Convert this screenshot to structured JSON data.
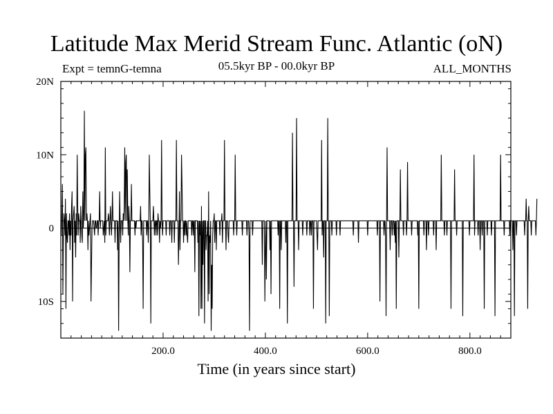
{
  "chart_data": {
    "type": "line",
    "title": "Latitude Max Merid Stream Func. Atlantic (oN)",
    "experiment": "Expt = temnG-temna",
    "period": "05.5kyr BP - 00.0kyr BP",
    "season": "ALL_MONTHS",
    "xlabel": "Time (in years since start)",
    "ylabel": "",
    "xlim": [
      0,
      880
    ],
    "ylim": [
      -15,
      20
    ],
    "x_ticks": [
      {
        "value": 200,
        "label": "200.0"
      },
      {
        "value": 400,
        "label": "400.0"
      },
      {
        "value": 600,
        "label": "600.0"
      },
      {
        "value": 800,
        "label": "800.0"
      }
    ],
    "y_ticks": [
      {
        "value": 20,
        "label": "20N"
      },
      {
        "value": 10,
        "label": "10N"
      },
      {
        "value": 0,
        "label": "0"
      },
      {
        "value": -10,
        "label": "10S"
      }
    ],
    "series": [
      {
        "name": "temnG-temna",
        "x_start": 1,
        "x_step": 1,
        "values": [
          -1,
          2,
          6,
          -9,
          -1,
          2,
          1,
          -1,
          4,
          -11,
          2,
          -1,
          -2,
          1,
          1,
          -1,
          2,
          -3,
          1,
          -1,
          3,
          5,
          -10,
          1,
          2,
          3,
          -2,
          1,
          -4,
          2,
          -1,
          10,
          3,
          -1,
          2,
          1,
          1,
          -2,
          3,
          1,
          -1,
          -2,
          5,
          0,
          2,
          16,
          1,
          10,
          11,
          1,
          2,
          1,
          -3,
          1,
          -1,
          0,
          1,
          2,
          -10,
          -5,
          0,
          1,
          1,
          1,
          0,
          -1,
          1,
          1,
          0,
          0,
          1,
          1,
          -1,
          1,
          1,
          5,
          0,
          1,
          1,
          1,
          1,
          1,
          -1,
          0,
          1,
          -2,
          11,
          -1,
          1,
          1,
          1,
          1,
          2,
          1,
          -1,
          1,
          3,
          1,
          -1,
          1,
          5,
          1,
          1,
          1,
          1,
          -2,
          1,
          1,
          1,
          1,
          -3,
          1,
          -14,
          -2,
          5,
          1,
          -2,
          1,
          1,
          1,
          -1,
          2,
          1,
          3,
          11,
          1,
          9,
          10,
          1,
          8,
          1,
          -1,
          3,
          1,
          -6,
          1,
          1,
          6,
          1,
          1,
          1,
          1,
          1,
          1,
          -1,
          1,
          0,
          1,
          1,
          1,
          1,
          1,
          1,
          1,
          1,
          3,
          -1,
          1,
          1,
          -2,
          -11,
          1,
          1,
          1,
          1,
          1,
          1,
          -1,
          1,
          1,
          -2,
          1,
          10,
          5,
          1,
          -13,
          1,
          1,
          1,
          1,
          3,
          1,
          -1,
          1,
          1,
          -1,
          1,
          1,
          -1,
          2,
          1,
          1,
          -2,
          1,
          0,
          1,
          12,
          1,
          -1,
          1,
          1,
          1,
          1,
          1,
          1,
          -1,
          1,
          1,
          1,
          1,
          1,
          1,
          -1,
          1,
          1,
          1,
          -2,
          1,
          1,
          1,
          1,
          -2,
          1,
          1,
          1,
          12,
          1,
          1,
          1,
          -5,
          -1,
          5,
          -3,
          1,
          1,
          10,
          6,
          1,
          1,
          -2,
          1,
          -1,
          1,
          1,
          -1,
          1,
          -1,
          -2,
          1,
          1,
          1,
          1,
          1,
          1,
          1,
          -1,
          1,
          1,
          -1,
          1,
          1,
          -6,
          1,
          1,
          1,
          1,
          1,
          -2,
          1,
          -12,
          1,
          -1,
          1,
          -11,
          3,
          -11,
          1,
          -5,
          1,
          1,
          -13,
          1,
          1,
          -3,
          -1,
          -1,
          1,
          -10,
          5,
          -9,
          -1,
          -2,
          1,
          -14,
          -5,
          -11,
          -1,
          1,
          1,
          2,
          -2,
          1,
          1,
          -3,
          1,
          1,
          1,
          1,
          1,
          1,
          -1,
          1,
          1,
          1,
          2,
          -2,
          1,
          1,
          1,
          12,
          1,
          1,
          -3,
          1,
          1,
          1,
          -1,
          -2,
          1,
          1,
          1,
          1,
          1,
          1,
          1,
          1,
          1,
          -1,
          1,
          1,
          10,
          1,
          1,
          -1,
          1,
          1,
          1,
          1,
          1,
          1,
          1,
          1,
          1,
          1,
          -1,
          1,
          1,
          1,
          1,
          1,
          1,
          1,
          1,
          -1,
          1,
          1,
          1,
          -1,
          -14,
          1,
          1,
          1,
          1,
          1,
          -1,
          1,
          1,
          1,
          1,
          1,
          1,
          1,
          1,
          1,
          1,
          1,
          1,
          1,
          1,
          1,
          1,
          1,
          1,
          -5,
          1,
          1,
          1,
          1,
          -10,
          -3,
          1,
          -7,
          1,
          1,
          1,
          1,
          1,
          1,
          -3,
          1,
          -9,
          1,
          1,
          1,
          1,
          1,
          1,
          1,
          1,
          1,
          1,
          1,
          1,
          1,
          -1,
          1,
          1,
          -11,
          1,
          1,
          -3,
          1,
          1,
          1,
          1,
          1,
          1,
          1,
          1,
          -2,
          1,
          1,
          -13,
          1,
          1,
          1,
          1,
          1,
          1,
          1,
          1,
          1,
          13,
          1,
          1,
          -8,
          1,
          1,
          1,
          1,
          15,
          1,
          1,
          1,
          -3,
          1,
          1,
          1,
          1,
          1,
          1,
          1,
          -1,
          1,
          1,
          1,
          1,
          1,
          1,
          1,
          -1,
          1,
          1,
          1,
          1,
          1,
          -1,
          1,
          1,
          -1,
          1,
          1,
          1,
          -11,
          1,
          1,
          1,
          1,
          1,
          1,
          -1,
          -3,
          1,
          1,
          1,
          1,
          1,
          1,
          1,
          12,
          -1,
          1,
          1,
          -4,
          1,
          1,
          1,
          -13,
          1,
          1,
          1,
          15,
          1,
          1,
          -12,
          1,
          1,
          1,
          1,
          -1,
          1,
          1,
          1,
          1,
          1,
          1,
          1,
          1,
          -1,
          1,
          1,
          1,
          1,
          1,
          1,
          -1,
          1,
          1,
          1,
          1,
          1,
          1,
          1,
          1,
          1,
          1,
          1,
          1,
          1,
          1,
          1,
          1,
          1,
          1,
          1,
          1,
          1,
          1,
          1,
          1,
          1,
          -1,
          1,
          1,
          1,
          1,
          1,
          1,
          1,
          1,
          1,
          -2,
          1,
          1,
          1,
          1,
          1,
          1,
          1,
          1,
          1,
          1,
          1,
          1,
          1,
          1,
          1,
          1,
          1,
          -1,
          1,
          1,
          1,
          1,
          1,
          1,
          1,
          1,
          1,
          1,
          1,
          1,
          1,
          1,
          1,
          1,
          1,
          1,
          -1,
          1,
          1,
          1,
          1,
          -10,
          1,
          1,
          1,
          1,
          1,
          1,
          1,
          -1,
          1,
          1,
          -1,
          -12,
          1,
          11,
          1,
          1,
          1,
          1,
          1,
          -3,
          1,
          1,
          1,
          -1,
          1,
          1,
          1,
          -1,
          1,
          -2,
          1,
          -11,
          1,
          1,
          1,
          1,
          -4,
          1,
          1,
          8,
          1,
          1,
          1,
          1,
          1,
          -1,
          1,
          1,
          1,
          1,
          1,
          -1,
          1,
          9,
          1,
          1,
          1,
          1,
          1,
          1,
          1,
          -1,
          1,
          1,
          1,
          1,
          1,
          1,
          1,
          1,
          1,
          1,
          1,
          -1,
          1,
          -11,
          1,
          1,
          1,
          1,
          1,
          1,
          1,
          1,
          1,
          -1,
          1,
          1,
          1,
          1,
          -3,
          1,
          1,
          1,
          -1,
          1,
          1,
          1,
          1,
          1,
          1,
          1,
          1,
          1,
          -1,
          1,
          1,
          1,
          1,
          -3,
          1,
          1,
          1,
          1,
          1,
          1,
          1,
          1,
          1,
          10,
          1,
          1,
          1,
          1,
          1,
          -1,
          1,
          1,
          1,
          1,
          -1,
          1,
          1,
          1,
          1,
          1,
          1,
          1,
          -11,
          1,
          1,
          1,
          1,
          1,
          1,
          8,
          1,
          1,
          1,
          -1,
          1,
          1,
          1,
          1,
          1,
          1,
          1,
          1,
          1,
          1,
          1,
          -12,
          1,
          1,
          1,
          1,
          1,
          1,
          1,
          1,
          1,
          1,
          1,
          1,
          -1,
          1,
          1,
          1,
          1,
          1,
          1,
          1,
          1,
          10,
          -1,
          1,
          1,
          1,
          1,
          1,
          1,
          -1,
          1,
          1,
          1,
          -3,
          1,
          1,
          1,
          -1,
          1,
          1,
          1,
          -11,
          1,
          1,
          1,
          1,
          1,
          -1,
          1,
          1,
          1,
          1,
          1,
          1,
          1,
          -1,
          1,
          1,
          1,
          1,
          1,
          1,
          -12,
          1,
          1,
          1,
          1,
          1,
          1,
          1,
          1,
          1,
          1,
          10,
          1,
          1,
          1,
          1,
          1,
          1,
          -1,
          1,
          1,
          1,
          1,
          1,
          1,
          1,
          1,
          1,
          1,
          -1,
          1,
          1,
          1,
          1,
          1,
          -3,
          1,
          1,
          -12,
          1,
          1,
          1,
          -1,
          1,
          1,
          1,
          1,
          1,
          1,
          1,
          1,
          1,
          1,
          1,
          1,
          1,
          1,
          1,
          -1,
          1,
          1,
          4,
          1,
          1,
          -11,
          1,
          3,
          1,
          1,
          1,
          1,
          -1,
          1,
          1,
          1,
          1,
          1,
          1,
          1,
          1,
          -1,
          1,
          4
        ]
      }
    ]
  }
}
